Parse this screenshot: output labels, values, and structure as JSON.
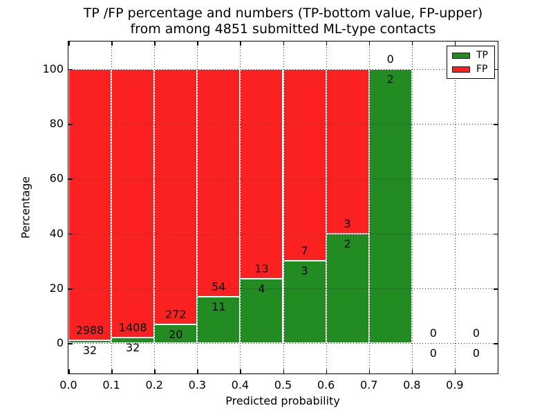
{
  "figure": {
    "title_line1": "TP /FP percentage and numbers (TP-bottom value, FP-upper)",
    "title_line2": "from among 4851 submitted ML-type contacts"
  },
  "chart_data": {
    "type": "bar",
    "stacked": true,
    "title": "TP /FP percentage and numbers (TP-bottom value, FP-upper) from among 4851 submitted ML-type contacts",
    "xlabel": "Predicted probability",
    "ylabel": "Percentage",
    "total_contacts": 4851,
    "xlim": [
      0.0,
      1.0
    ],
    "ylim": [
      -11,
      110
    ],
    "xticks": [
      0.0,
      0.1,
      0.2,
      0.3,
      0.4,
      0.5,
      0.6,
      0.7,
      0.8,
      0.9
    ],
    "yticks": [
      0,
      20,
      40,
      60,
      80,
      100
    ],
    "grid": "dotted-black",
    "bin_start": [
      0.0,
      0.1,
      0.2,
      0.3,
      0.4,
      0.5,
      0.6,
      0.7,
      0.8,
      0.9
    ],
    "bin_width": 0.1,
    "series": [
      {
        "name": "TP",
        "color": "#228b22",
        "counts": [
          32,
          32,
          20,
          11,
          4,
          3,
          2,
          2,
          0,
          0
        ],
        "percent": [
          1.06,
          2.22,
          6.85,
          16.92,
          23.53,
          30.0,
          40.0,
          100.0,
          0,
          0
        ]
      },
      {
        "name": "FP",
        "color": "#fc2121",
        "counts": [
          2988,
          1408,
          272,
          54,
          13,
          7,
          3,
          0,
          0,
          0
        ],
        "percent": [
          98.94,
          97.78,
          93.15,
          83.08,
          76.47,
          70.0,
          60.0,
          0.0,
          0,
          0
        ]
      }
    ],
    "legend": {
      "position": "upper right",
      "entries": [
        {
          "label": "TP",
          "color": "#228b22"
        },
        {
          "label": "FP",
          "color": "#fc2121"
        }
      ]
    }
  }
}
